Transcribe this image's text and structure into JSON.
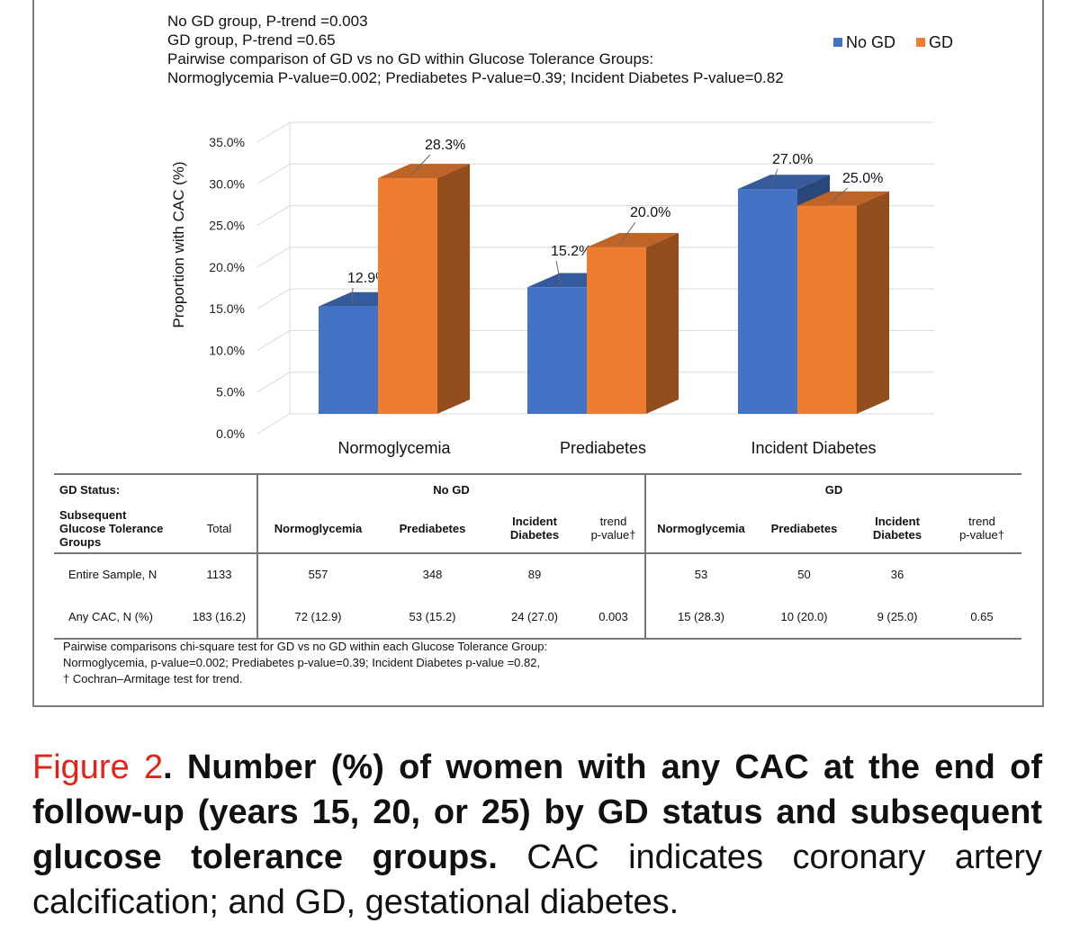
{
  "notes": [
    "No GD group, P-trend =0.003",
    "GD group, P-trend =0.65",
    "Pairwise comparison of GD vs no GD within Glucose Tolerance Groups:",
    "Normoglycemia P-value=0.002; Prediabetes P-value=0.39; Incident Diabetes P-value=0.82"
  ],
  "chart_data": {
    "type": "bar",
    "title": "",
    "xlabel": "",
    "ylabel": "Proportion with CAC (%)",
    "ylim": [
      0,
      35
    ],
    "yticks": [
      0,
      5,
      10,
      15,
      20,
      25,
      30,
      35
    ],
    "ytick_labels": [
      "0.0%",
      "5.0%",
      "10.0%",
      "15.0%",
      "20.0%",
      "25.0%",
      "30.0%",
      "35.0%"
    ],
    "categories": [
      "Normoglycemia",
      "Prediabetes",
      "Incident Diabetes"
    ],
    "series": [
      {
        "name": "No GD",
        "values": [
          12.9,
          15.2,
          27.0
        ],
        "labels": [
          "12.9%",
          "15.2%",
          "27.0%"
        ],
        "color": "#4472c4"
      },
      {
        "name": "GD",
        "values": [
          28.3,
          20.0,
          25.0
        ],
        "labels": [
          "28.3%",
          "20.0%",
          "25.0%"
        ],
        "color": "#ed7d31"
      }
    ],
    "legend": "top-right",
    "grid": true
  },
  "table": {
    "gd_status_label": "GD Status:",
    "no_gd_header": "No GD",
    "gd_header": "GD",
    "group_label_lines": [
      "Subsequent",
      "Glucose Tolerance",
      "Groups"
    ],
    "total_header": "Total",
    "normo_header": "Normoglycemia",
    "pre_header": "Prediabetes",
    "incident_header_lines": [
      "Incident",
      "Diabetes"
    ],
    "trend_header_lines": [
      "trend",
      "p-value†"
    ],
    "rows": [
      {
        "label": "Entire Sample, N",
        "total": "1133",
        "nogd": [
          "557",
          "348",
          "89",
          ""
        ],
        "gd": [
          "53",
          "50",
          "36",
          ""
        ]
      },
      {
        "label": "Any CAC, N (%)",
        "total": "183 (16.2)",
        "nogd": [
          "72 (12.9)",
          "53 (15.2)",
          "24 (27.0)",
          "0.003"
        ],
        "gd": [
          "15 (28.3)",
          "10 (20.0)",
          "9 (25.0)",
          "0.65"
        ]
      }
    ]
  },
  "footnotes": [
    "Pairwise comparisons chi-square test for GD vs no GD within each Glucose Tolerance Group:",
    "Normoglycemia, p-value=0.002; Prediabetes p-value=0.39; Incident Diabetes p-value =0.82,",
    "† Cochran–Armitage test for trend."
  ],
  "caption": {
    "figure_label": "Figure 2",
    "bold_text": ". Number (%) of women with any CAC at the end of follow-up (years 15, 20, or 25) by GD status and subsequent glucose tolerance groups.",
    "normal_text": " CAC indicates coronary artery calcification; and GD, gestational diabetes."
  }
}
